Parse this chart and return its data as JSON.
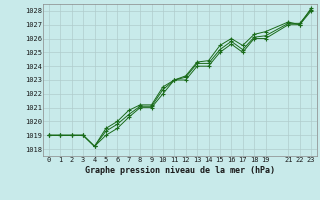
{
  "title": "Graphe pression niveau de la mer (hPa)",
  "bg_color": "#c8eaea",
  "grid_color": "#b0cccc",
  "line_color": "#1a6b1a",
  "marker_color": "#1a6b1a",
  "xlim": [
    -0.5,
    23.5
  ],
  "ylim": [
    1017.5,
    1028.5
  ],
  "yticks": [
    1018,
    1019,
    1020,
    1021,
    1022,
    1023,
    1024,
    1025,
    1026,
    1027,
    1028
  ],
  "xticks": [
    0,
    1,
    2,
    3,
    4,
    5,
    6,
    7,
    8,
    9,
    10,
    11,
    12,
    13,
    14,
    15,
    16,
    17,
    18,
    19,
    21,
    22,
    23
  ],
  "series1": {
    "x": [
      0,
      1,
      2,
      3,
      4,
      5,
      6,
      7,
      8,
      9,
      10,
      11,
      12,
      13,
      14,
      15,
      16,
      17,
      18,
      19,
      21,
      22,
      23
    ],
    "y": [
      1019,
      1019,
      1019,
      1019,
      1018.2,
      1019,
      1019.5,
      1020.3,
      1021.0,
      1021.0,
      1022.0,
      1023.0,
      1023.0,
      1024.0,
      1024.0,
      1025.0,
      1025.6,
      1025.0,
      1026.0,
      1026.0,
      1027.0,
      1027.0,
      1028.0
    ]
  },
  "series2": {
    "x": [
      0,
      1,
      2,
      3,
      4,
      5,
      6,
      7,
      8,
      9,
      10,
      11,
      12,
      13,
      14,
      15,
      16,
      17,
      18,
      19,
      21,
      22,
      23
    ],
    "y": [
      1019,
      1019,
      1019,
      1019,
      1018.2,
      1019.3,
      1019.8,
      1020.5,
      1021.1,
      1021.1,
      1022.3,
      1023.0,
      1023.2,
      1024.2,
      1024.2,
      1025.2,
      1025.8,
      1025.2,
      1026.1,
      1026.2,
      1027.1,
      1027.1,
      1028.1
    ]
  },
  "series3": {
    "x": [
      0,
      1,
      2,
      3,
      4,
      5,
      6,
      7,
      8,
      9,
      10,
      11,
      12,
      13,
      14,
      15,
      16,
      17,
      18,
      19,
      21,
      22,
      23
    ],
    "y": [
      1019,
      1019,
      1019,
      1019,
      1018.2,
      1019.5,
      1020.0,
      1020.8,
      1021.2,
      1021.2,
      1022.5,
      1023.0,
      1023.3,
      1024.3,
      1024.4,
      1025.5,
      1026.0,
      1025.5,
      1026.3,
      1026.5,
      1027.2,
      1027.0,
      1028.2
    ]
  }
}
